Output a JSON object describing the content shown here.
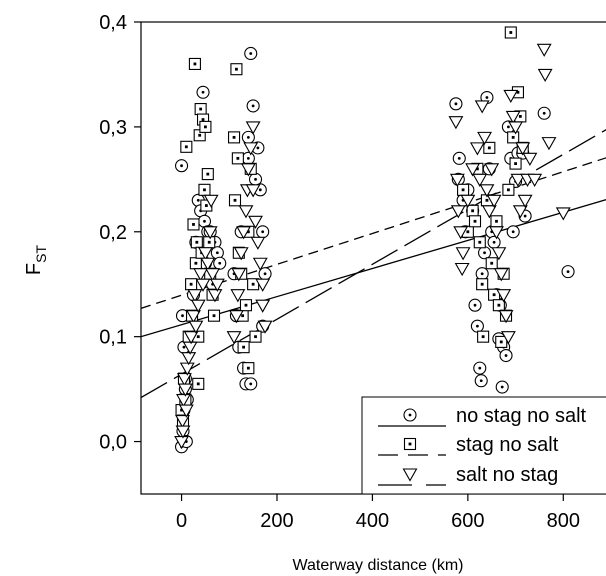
{
  "chart_data": {
    "type": "scatter",
    "xlabel": "Waterway distance (km)",
    "ylabel": "F",
    "ylabel_subscript": "ST",
    "xlim": [
      -85,
      900
    ],
    "ylim": [
      -0.05,
      0.4
    ],
    "xticks": [
      0,
      200,
      400,
      600,
      800
    ],
    "xtick_labels": [
      "0",
      "200",
      "400",
      "600",
      "800"
    ],
    "yticks": [
      0.0,
      0.1,
      0.2,
      0.3,
      0.4
    ],
    "ytick_labels": [
      "0,0",
      "0,1",
      "0,2",
      "0,3",
      "0,4"
    ],
    "grid": false,
    "legend_position": "bottom-right",
    "series": [
      {
        "name": "no stag no salt",
        "marker": "circle-dot",
        "line": "solid",
        "regression": {
          "x": [
            -85,
            900
          ],
          "y": [
            0.1,
            0.232
          ]
        },
        "points": [
          [
            0,
            -0.005
          ],
          [
            3,
            0.01
          ],
          [
            5,
            0.03
          ],
          [
            8,
            0.05
          ],
          [
            2,
            0.12
          ],
          [
            5,
            0.09
          ],
          [
            8,
            0.06
          ],
          [
            0,
            0.263
          ],
          [
            10,
            0.0
          ],
          [
            12,
            0.04
          ],
          [
            25,
            0.14
          ],
          [
            30,
            0.19
          ],
          [
            35,
            0.23
          ],
          [
            40,
            0.22
          ],
          [
            45,
            0.333
          ],
          [
            48,
            0.21
          ],
          [
            50,
            0.17
          ],
          [
            55,
            0.2
          ],
          [
            60,
            0.2
          ],
          [
            65,
            0.15
          ],
          [
            70,
            0.19
          ],
          [
            75,
            0.18
          ],
          [
            80,
            0.17
          ],
          [
            110,
            0.16
          ],
          [
            115,
            0.12
          ],
          [
            120,
            0.09
          ],
          [
            125,
            0.2
          ],
          [
            130,
            0.07
          ],
          [
            135,
            0.055
          ],
          [
            140,
            0.27
          ],
          [
            140,
            0.29
          ],
          [
            145,
            0.055
          ],
          [
            145,
            0.37
          ],
          [
            150,
            0.32
          ],
          [
            155,
            0.25
          ],
          [
            160,
            0.28
          ],
          [
            165,
            0.24
          ],
          [
            170,
            0.2
          ],
          [
            170,
            0.11
          ],
          [
            175,
            0.16
          ],
          [
            575,
            0.322
          ],
          [
            580,
            0.25
          ],
          [
            582,
            0.27
          ],
          [
            590,
            0.23
          ],
          [
            595,
            0.2
          ],
          [
            600,
            0.24
          ],
          [
            610,
            0.22
          ],
          [
            615,
            0.13
          ],
          [
            620,
            0.11
          ],
          [
            625,
            0.07
          ],
          [
            628,
            0.058
          ],
          [
            630,
            0.16
          ],
          [
            635,
            0.18
          ],
          [
            640,
            0.328
          ],
          [
            645,
            0.26
          ],
          [
            650,
            0.2
          ],
          [
            655,
            0.19
          ],
          [
            660,
            0.14
          ],
          [
            665,
            0.098
          ],
          [
            668,
            0.13
          ],
          [
            672,
            0.052
          ],
          [
            675,
            0.09
          ],
          [
            680,
            0.082
          ],
          [
            685,
            0.3
          ],
          [
            690,
            0.27
          ],
          [
            695,
            0.2
          ],
          [
            700,
            0.248
          ],
          [
            705,
            0.275
          ],
          [
            715,
            0.275
          ],
          [
            720,
            0.215
          ],
          [
            760,
            0.313
          ],
          [
            810,
            0.162
          ]
        ]
      },
      {
        "name": "stag no salt",
        "marker": "square-dot",
        "line": "short-dash",
        "regression": {
          "x": [
            -85,
            900
          ],
          "y": [
            0.127,
            0.272
          ]
        },
        "points": [
          [
            0,
            0.03
          ],
          [
            5,
            0.06
          ],
          [
            8,
            0.04
          ],
          [
            3,
            0.02
          ],
          [
            10,
            0.281
          ],
          [
            15,
            0.1
          ],
          [
            20,
            0.15
          ],
          [
            22,
            0.12
          ],
          [
            25,
            0.207
          ],
          [
            28,
            0.36
          ],
          [
            30,
            0.17
          ],
          [
            32,
            0.19
          ],
          [
            35,
            0.1
          ],
          [
            35,
            0.055
          ],
          [
            38,
            0.292
          ],
          [
            40,
            0.317
          ],
          [
            42,
            0.18
          ],
          [
            45,
            0.307
          ],
          [
            48,
            0.24
          ],
          [
            50,
            0.3
          ],
          [
            52,
            0.225
          ],
          [
            55,
            0.255
          ],
          [
            58,
            0.19
          ],
          [
            60,
            0.16
          ],
          [
            65,
            0.14
          ],
          [
            68,
            0.12
          ],
          [
            110,
            0.29
          ],
          [
            112,
            0.23
          ],
          [
            115,
            0.355
          ],
          [
            118,
            0.27
          ],
          [
            120,
            0.18
          ],
          [
            125,
            0.16
          ],
          [
            128,
            0.12
          ],
          [
            130,
            0.09
          ],
          [
            135,
            0.13
          ],
          [
            140,
            0.07
          ],
          [
            140,
            0.2
          ],
          [
            145,
            0.26
          ],
          [
            150,
            0.15
          ],
          [
            155,
            0.1
          ],
          [
            590,
            0.24
          ],
          [
            600,
            0.2
          ],
          [
            610,
            0.22
          ],
          [
            615,
            0.21
          ],
          [
            620,
            0.26
          ],
          [
            625,
            0.19
          ],
          [
            630,
            0.15
          ],
          [
            632,
            0.1
          ],
          [
            640,
            0.23
          ],
          [
            645,
            0.28
          ],
          [
            650,
            0.17
          ],
          [
            655,
            0.14
          ],
          [
            660,
            0.21
          ],
          [
            665,
            0.13
          ],
          [
            670,
            0.095
          ],
          [
            675,
            0.16
          ],
          [
            680,
            0.12
          ],
          [
            685,
            0.24
          ],
          [
            690,
            0.39
          ],
          [
            695,
            0.29
          ],
          [
            700,
            0.265
          ],
          [
            705,
            0.333
          ],
          [
            710,
            0.31
          ],
          [
            715,
            0.28
          ]
        ]
      },
      {
        "name": "salt no stag",
        "marker": "triangle-down",
        "line": "long-dash",
        "regression": {
          "x": [
            -85,
            900
          ],
          "y": [
            0.042,
            0.3
          ]
        },
        "points": [
          [
            0,
            0.0
          ],
          [
            2,
            0.02
          ],
          [
            4,
            0.04
          ],
          [
            6,
            0.06
          ],
          [
            3,
            0.01
          ],
          [
            8,
            0.05
          ],
          [
            10,
            0.03
          ],
          [
            12,
            0.07
          ],
          [
            15,
            0.08
          ],
          [
            18,
            0.09
          ],
          [
            20,
            0.1
          ],
          [
            25,
            0.12
          ],
          [
            28,
            0.14
          ],
          [
            30,
            0.11
          ],
          [
            35,
            0.13
          ],
          [
            40,
            0.16
          ],
          [
            45,
            0.15
          ],
          [
            50,
            0.18
          ],
          [
            55,
            0.17
          ],
          [
            60,
            0.2
          ],
          [
            62,
            0.23
          ],
          [
            65,
            0.16
          ],
          [
            70,
            0.14
          ],
          [
            75,
            0.15
          ],
          [
            110,
            0.1
          ],
          [
            115,
            0.12
          ],
          [
            118,
            0.14
          ],
          [
            120,
            0.16
          ],
          [
            125,
            0.18
          ],
          [
            130,
            0.2
          ],
          [
            135,
            0.22
          ],
          [
            138,
            0.24
          ],
          [
            140,
            0.26
          ],
          [
            145,
            0.28
          ],
          [
            150,
            0.3
          ],
          [
            150,
            0.24
          ],
          [
            155,
            0.21
          ],
          [
            160,
            0.19
          ],
          [
            165,
            0.17
          ],
          [
            170,
            0.15
          ],
          [
            170,
            0.13
          ],
          [
            175,
            0.11
          ],
          [
            575,
            0.305
          ],
          [
            578,
            0.25
          ],
          [
            580,
            0.22
          ],
          [
            585,
            0.2
          ],
          [
            588,
            0.165
          ],
          [
            590,
            0.18
          ],
          [
            600,
            0.23
          ],
          [
            610,
            0.26
          ],
          [
            620,
            0.28
          ],
          [
            625,
            0.25
          ],
          [
            630,
            0.32
          ],
          [
            635,
            0.29
          ],
          [
            640,
            0.24
          ],
          [
            645,
            0.22
          ],
          [
            650,
            0.26
          ],
          [
            655,
            0.23
          ],
          [
            660,
            0.2
          ],
          [
            665,
            0.18
          ],
          [
            670,
            0.16
          ],
          [
            675,
            0.14
          ],
          [
            680,
            0.12
          ],
          [
            685,
            0.1
          ],
          [
            690,
            0.33
          ],
          [
            695,
            0.31
          ],
          [
            700,
            0.3
          ],
          [
            705,
            0.25
          ],
          [
            710,
            0.22
          ],
          [
            715,
            0.28
          ],
          [
            720,
            0.23
          ],
          [
            725,
            0.25
          ],
          [
            730,
            0.27
          ],
          [
            760,
            0.374
          ],
          [
            762,
            0.35
          ],
          [
            770,
            0.285
          ],
          [
            740,
            0.25
          ],
          [
            800,
            0.218
          ]
        ]
      }
    ]
  }
}
